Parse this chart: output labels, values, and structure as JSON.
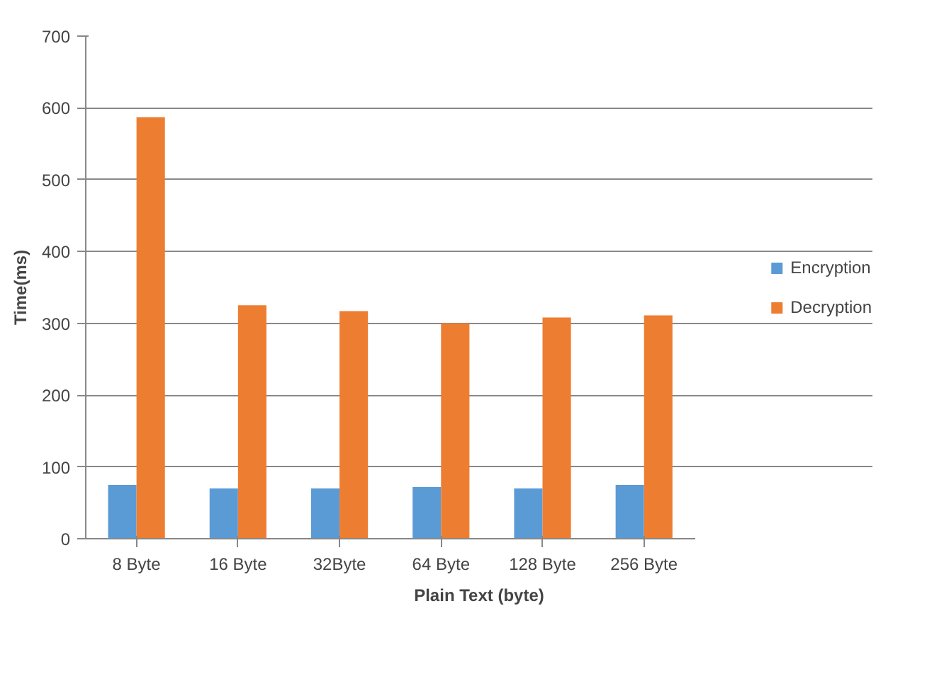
{
  "chart_data": {
    "type": "bar",
    "xlabel": "Plain Text (byte)",
    "ylabel": "Time(ms)",
    "categories": [
      "8 Byte",
      "16 Byte",
      "32Byte",
      "64 Byte",
      "128 Byte",
      "256 Byte"
    ],
    "series": [
      {
        "name": "Encryption",
        "color": "#5b9bd5",
        "values": [
          75,
          70,
          70,
          72,
          70,
          75
        ]
      },
      {
        "name": "Decryption",
        "color": "#ed7d31",
        "values": [
          587,
          325,
          317,
          300,
          308,
          311
        ]
      }
    ],
    "ylim": [
      0,
      700
    ],
    "yticks": [
      0,
      100,
      200,
      300,
      400,
      500,
      600,
      700
    ],
    "grid": "y",
    "legend": "right"
  }
}
